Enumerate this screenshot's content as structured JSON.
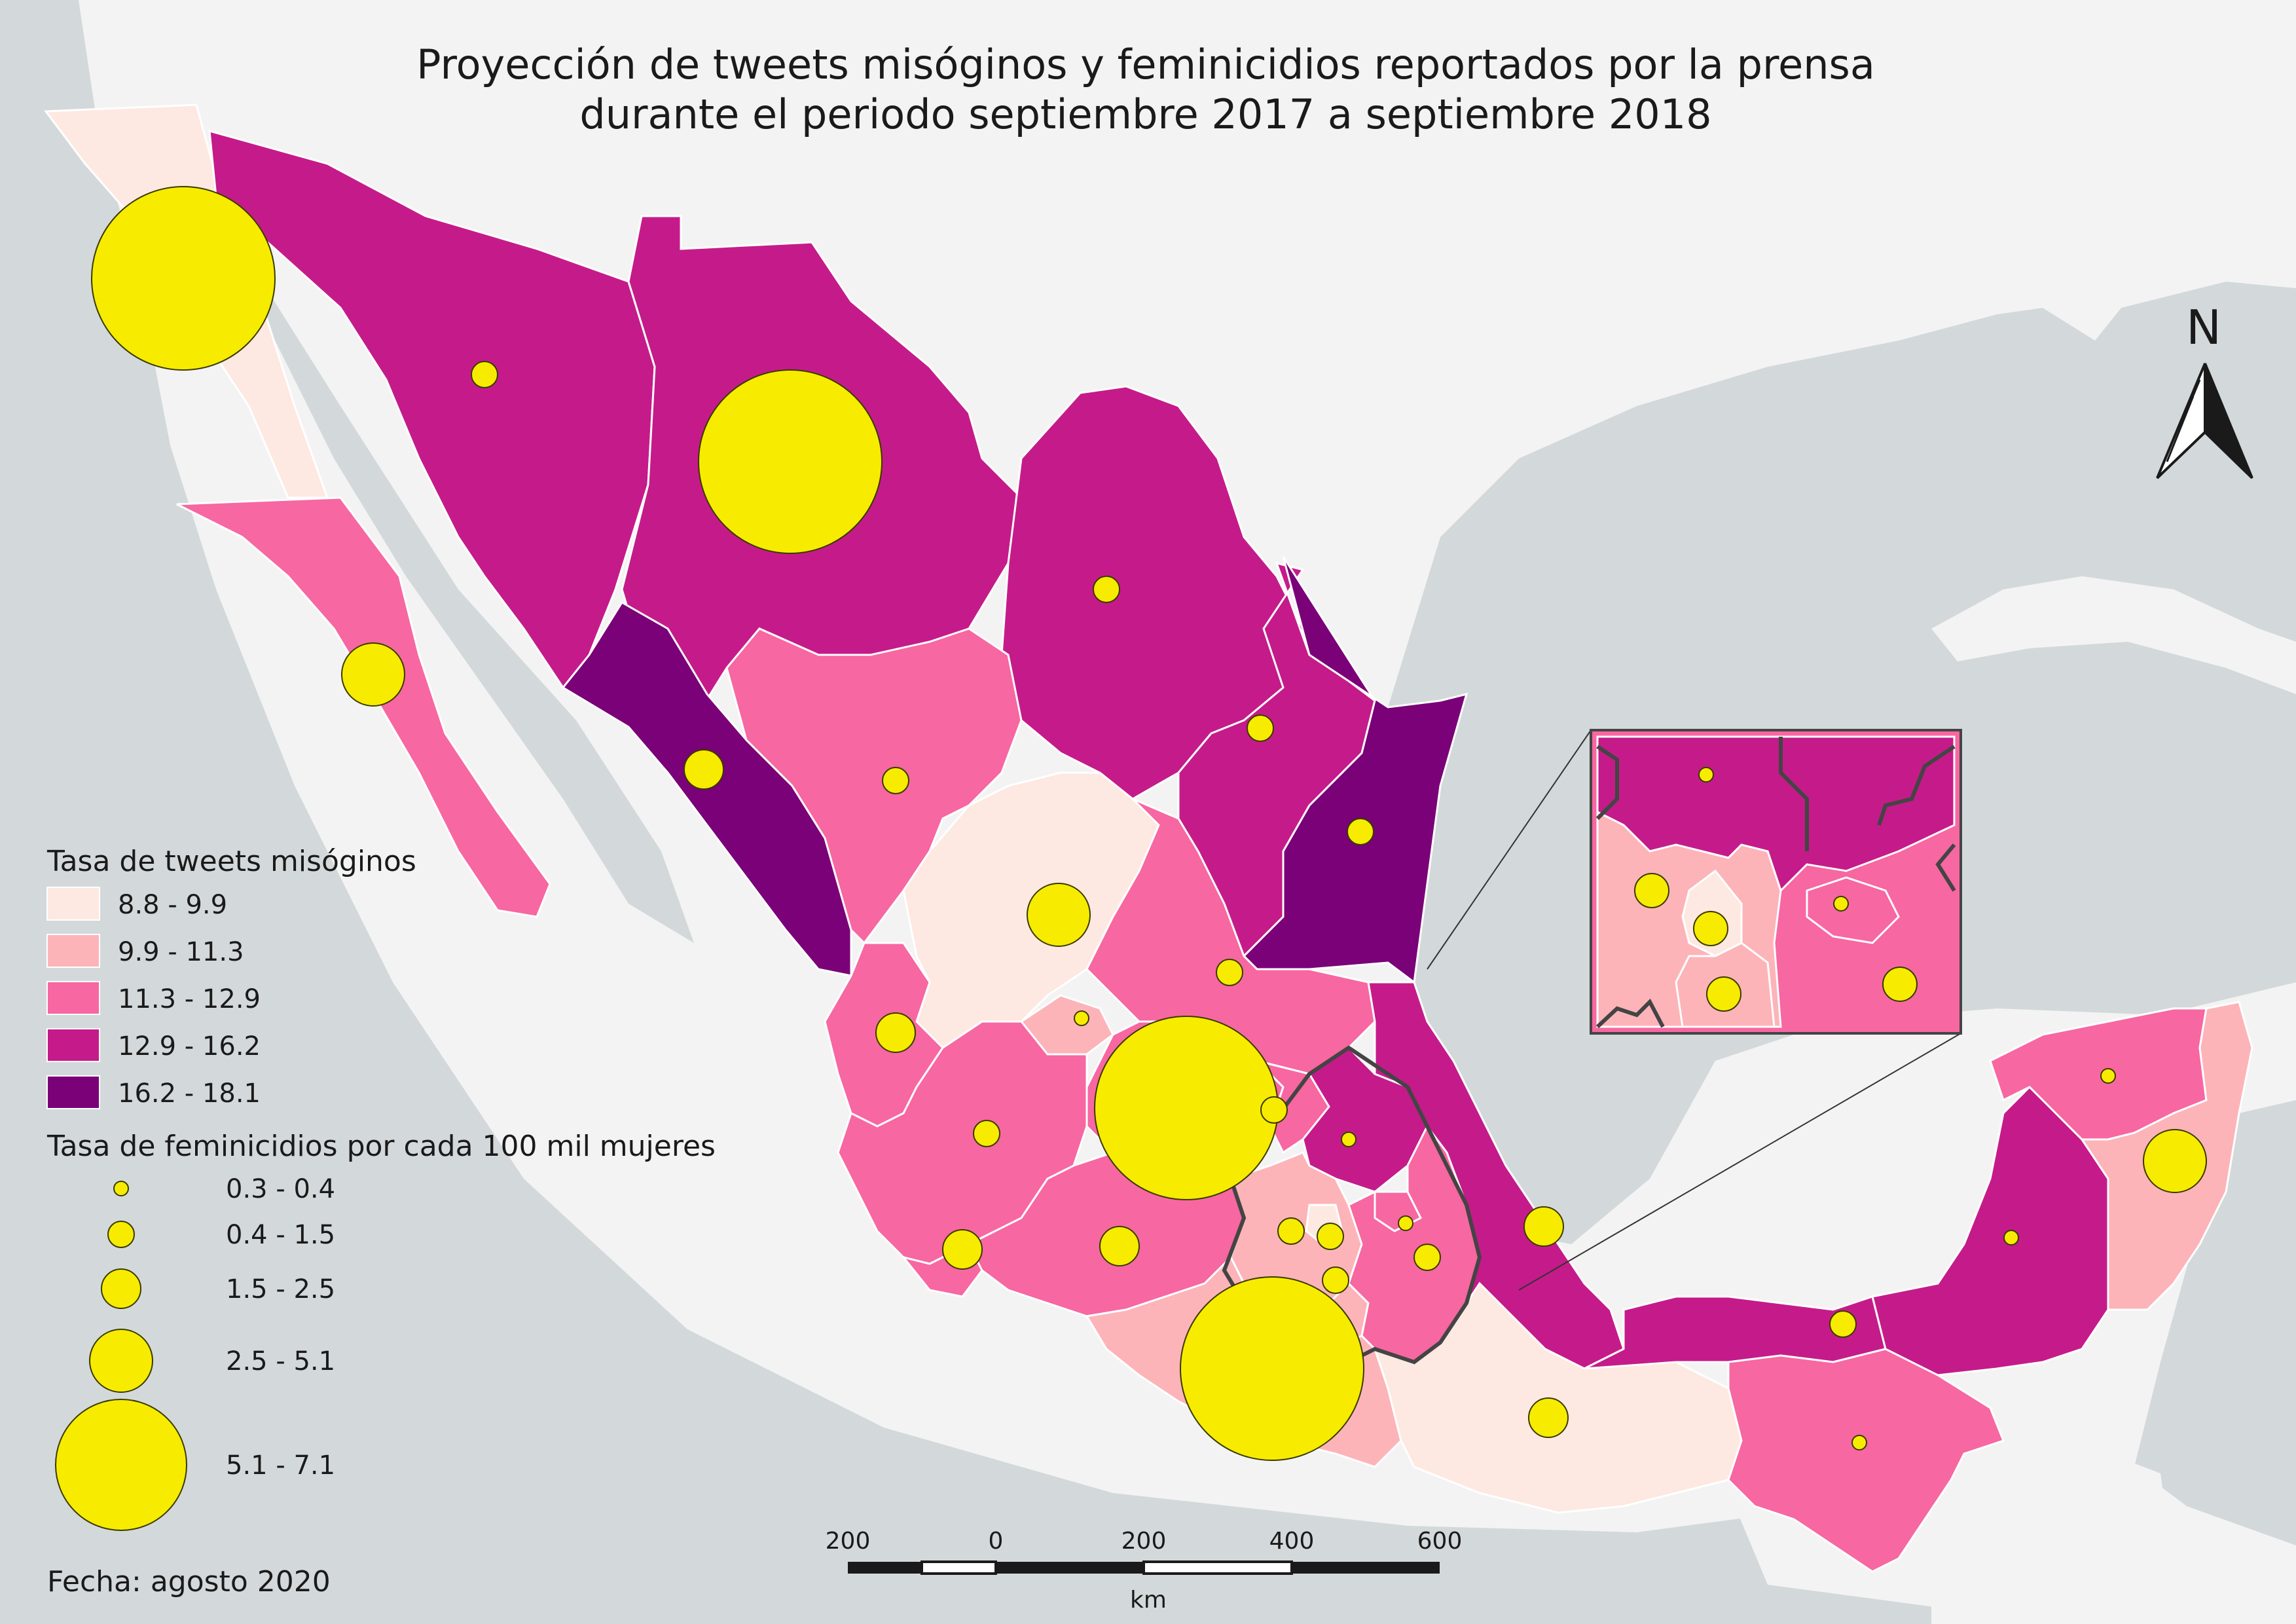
{
  "title": {
    "line1": "Proyección de tweets misóginos y feminicidios reportados por la prensa",
    "line2": "durante el periodo septiembre 2017 a septiembre 2018"
  },
  "colors": {
    "sea": "#d3d9da",
    "land_outside": "#f3f3f3",
    "class1": "#fde9e1",
    "class2": "#fcb4b9",
    "class3": "#f767a1",
    "class4": "#c51b8a",
    "class5": "#7a0177",
    "feminicide_marker": "#f7ec00"
  },
  "legend_tweets": {
    "title": "Tasa de tweets misóginos",
    "classes": [
      {
        "label": "8.8 - 9.9",
        "color": "#fde9e1"
      },
      {
        "label": "9.9 - 11.3",
        "color": "#fcb4b9"
      },
      {
        "label": "11.3 - 12.9",
        "color": "#f767a1"
      },
      {
        "label": "12.9 - 16.2",
        "color": "#c51b8a"
      },
      {
        "label": "16.2 - 18.1",
        "color": "#7a0177"
      }
    ]
  },
  "legend_feminicides": {
    "title": "Tasa de feminicidios por cada 100 mil mujeres",
    "classes": [
      {
        "label": "0.3 - 0.4",
        "size_rank": 1
      },
      {
        "label": "0.4 - 1.5",
        "size_rank": 2
      },
      {
        "label": "1.5 - 2.5",
        "size_rank": 3
      },
      {
        "label": "2.5 - 5.1",
        "size_rank": 4
      },
      {
        "label": "5.1 - 7.1",
        "size_rank": 5
      }
    ]
  },
  "scale_bar": {
    "tick_labels": [
      "200",
      "0",
      "200",
      "400",
      "600"
    ],
    "unit": "km"
  },
  "north_arrow": {
    "label": "N",
    "icon": "north-arrow-icon"
  },
  "footer": {
    "date": "Fecha: agosto 2020"
  },
  "states": [
    {
      "id": "baja-california",
      "tweet_class": 1,
      "feminicide_class": 5
    },
    {
      "id": "baja-california-sur",
      "tweet_class": 3,
      "feminicide_class": 4
    },
    {
      "id": "sonora",
      "tweet_class": 4,
      "feminicide_class": 2
    },
    {
      "id": "chihuahua",
      "tweet_class": 4,
      "feminicide_class": 5
    },
    {
      "id": "coahuila",
      "tweet_class": 4,
      "feminicide_class": 2
    },
    {
      "id": "nuevo-leon",
      "tweet_class": 4,
      "feminicide_class": 2
    },
    {
      "id": "tamaulipas",
      "tweet_class": 5,
      "feminicide_class": 2
    },
    {
      "id": "sinaloa",
      "tweet_class": 5,
      "feminicide_class": 3
    },
    {
      "id": "durango",
      "tweet_class": 3,
      "feminicide_class": 2
    },
    {
      "id": "zacatecas",
      "tweet_class": 1,
      "feminicide_class": 4
    },
    {
      "id": "san-luis-potosi",
      "tweet_class": 3,
      "feminicide_class": 2
    },
    {
      "id": "nayarit",
      "tweet_class": 3,
      "feminicide_class": 3
    },
    {
      "id": "aguascalientes",
      "tweet_class": 2,
      "feminicide_class": 1
    },
    {
      "id": "guanajuato",
      "tweet_class": 3,
      "feminicide_class": 5
    },
    {
      "id": "queretaro",
      "tweet_class": 3,
      "feminicide_class": 2
    },
    {
      "id": "hidalgo",
      "tweet_class": 4,
      "feminicide_class": 1
    },
    {
      "id": "jalisco",
      "tweet_class": 3,
      "feminicide_class": 2
    },
    {
      "id": "colima",
      "tweet_class": 3,
      "feminicide_class": 3
    },
    {
      "id": "michoacan",
      "tweet_class": 3,
      "feminicide_class": 3
    },
    {
      "id": "mexico",
      "tweet_class": 2,
      "feminicide_class": 2
    },
    {
      "id": "morelos",
      "tweet_class": 2,
      "feminicide_class": 2
    },
    {
      "id": "cdmx",
      "tweet_class": 1,
      "feminicide_class": 2
    },
    {
      "id": "tlaxcala",
      "tweet_class": 3,
      "feminicide_class": 1
    },
    {
      "id": "puebla",
      "tweet_class": 3,
      "feminicide_class": 2
    },
    {
      "id": "veracruz",
      "tweet_class": 4,
      "feminicide_class": 3
    },
    {
      "id": "guerrero",
      "tweet_class": 2,
      "feminicide_class": 5
    },
    {
      "id": "oaxaca",
      "tweet_class": 1,
      "feminicide_class": 3
    },
    {
      "id": "tabasco",
      "tweet_class": 4,
      "feminicide_class": 2
    },
    {
      "id": "chiapas",
      "tweet_class": 3,
      "feminicide_class": 1
    },
    {
      "id": "campeche",
      "tweet_class": 4,
      "feminicide_class": 1
    },
    {
      "id": "yucatan",
      "tweet_class": 3,
      "feminicide_class": 1
    },
    {
      "id": "quintana-roo",
      "tweet_class": 2,
      "feminicide_class": 4
    }
  ]
}
